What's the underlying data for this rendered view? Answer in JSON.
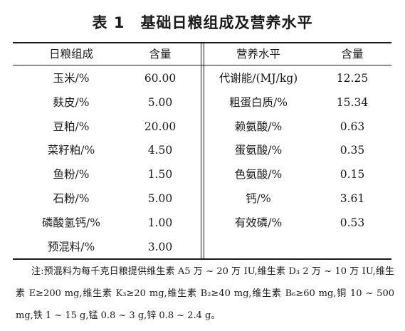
{
  "title": {
    "number": "表 1",
    "text": "基础日粮组成及营养水平"
  },
  "headers": {
    "ingredient": "日粮组成",
    "content_left": "含量",
    "nutrient": "营养水平",
    "content_right": "含量"
  },
  "ingredients": [
    {
      "name": "玉米/%",
      "value": "60.00"
    },
    {
      "name": "麸皮/%",
      "value": "5.00"
    },
    {
      "name": "豆粕/%",
      "value": "20.00"
    },
    {
      "name": "菜籽粕/%",
      "value": "4.50"
    },
    {
      "name": "鱼粉/%",
      "value": "1.50"
    },
    {
      "name": "石粉/%",
      "value": "5.00"
    },
    {
      "name": "磷酸氢钙/%",
      "value": "1.00"
    },
    {
      "name": "预混料/%",
      "value": "3.00"
    }
  ],
  "nutrients": [
    {
      "name": "代谢能/(MJ/kg)",
      "value": "12.25"
    },
    {
      "name": "粗蛋白质/%",
      "value": "15.34"
    },
    {
      "name": "赖氨酸/%",
      "value": "0.63"
    },
    {
      "name": "蛋氨酸/%",
      "value": "0.35"
    },
    {
      "name": "色氨酸/%",
      "value": "0.15"
    },
    {
      "name": "钙/%",
      "value": "3.61"
    },
    {
      "name": "有效磷/%",
      "value": "0.53"
    }
  ],
  "note": "注:预混料为每千克日粮提供维生素 A5 万 ~ 20 万 IU,维生素 D₃ 2 万 ~ 10 万 IU,维生素 E≥200 mg,维生素 K₃≥20 mg,维生素 B₂≥40 mg,维生素 B₆≥60 mg,铜 10 ~ 500 mg,铁 1 ~ 15 g,锰 0.8 ~ 3 g,锌 0.8 ~ 2.4 g。"
}
